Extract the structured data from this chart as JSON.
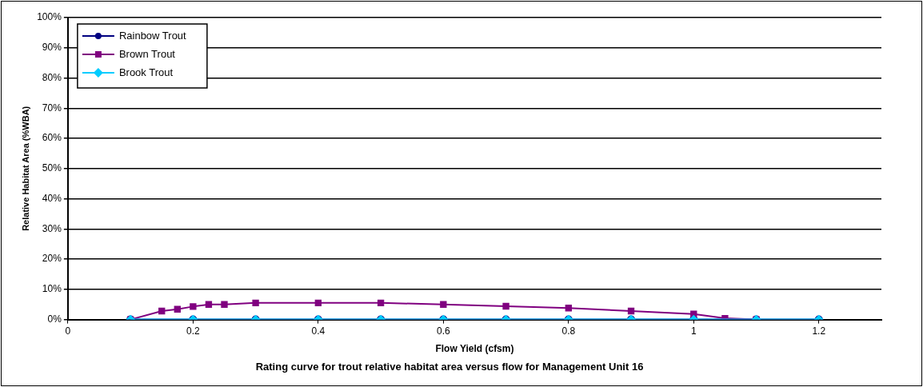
{
  "chart_data": {
    "type": "line",
    "title": "Rating curve for trout relative habitat area versus flow for Management Unit 16",
    "xlabel": "Flow Yield (cfsm)",
    "ylabel": "Relative Habitat Area (%WBA)",
    "xlim": [
      0,
      1.3
    ],
    "xticks": [
      0,
      0.2,
      0.4,
      0.6,
      0.8,
      1,
      1.2
    ],
    "ylim": [
      0,
      100
    ],
    "yticks": [
      {
        "value": 0,
        "label": "0%"
      },
      {
        "value": 10,
        "label": "10%"
      },
      {
        "value": 20,
        "label": "20%"
      },
      {
        "value": 30,
        "label": "30%"
      },
      {
        "value": 40,
        "label": "40%"
      },
      {
        "value": 50,
        "label": "50%"
      },
      {
        "value": 60,
        "label": "60%"
      },
      {
        "value": 70,
        "label": "70%"
      },
      {
        "value": 80,
        "label": "80%"
      },
      {
        "value": 90,
        "label": "90%"
      },
      {
        "value": 100,
        "label": "100%"
      }
    ],
    "grid": "y",
    "legend": "top left",
    "series": [
      {
        "name": "Rainbow Trout",
        "color": "#000080",
        "marker": "circle",
        "x": [
          0.1,
          0.2,
          0.3,
          0.4,
          0.5,
          0.6,
          0.7,
          0.8,
          0.9,
          1,
          1.1,
          1.2
        ],
        "values": [
          0,
          0,
          0,
          0,
          0,
          0,
          0,
          0,
          0,
          0,
          0,
          0
        ]
      },
      {
        "name": "Brown Trout",
        "color": "#800080",
        "marker": "square",
        "x": [
          0.1,
          0.15,
          0.175,
          0.2,
          0.225,
          0.25,
          0.3,
          0.4,
          0.5,
          0.6,
          0.7,
          0.8,
          0.9,
          1,
          1.05,
          1.1
        ],
        "values": [
          0,
          2.8,
          3.4,
          4.3,
          5,
          5,
          5.5,
          5.5,
          5.5,
          5,
          4.4,
          3.8,
          2.8,
          1.8,
          0.4,
          0
        ]
      },
      {
        "name": "Brook Trout",
        "color": "#00ccff",
        "marker": "diamond",
        "x": [
          0.1,
          0.2,
          0.3,
          0.4,
          0.5,
          0.6,
          0.7,
          0.8,
          0.9,
          1,
          1.1,
          1.2
        ],
        "values": [
          0,
          0,
          0,
          0,
          0,
          0,
          0,
          0,
          0,
          0,
          0,
          0
        ]
      }
    ]
  }
}
